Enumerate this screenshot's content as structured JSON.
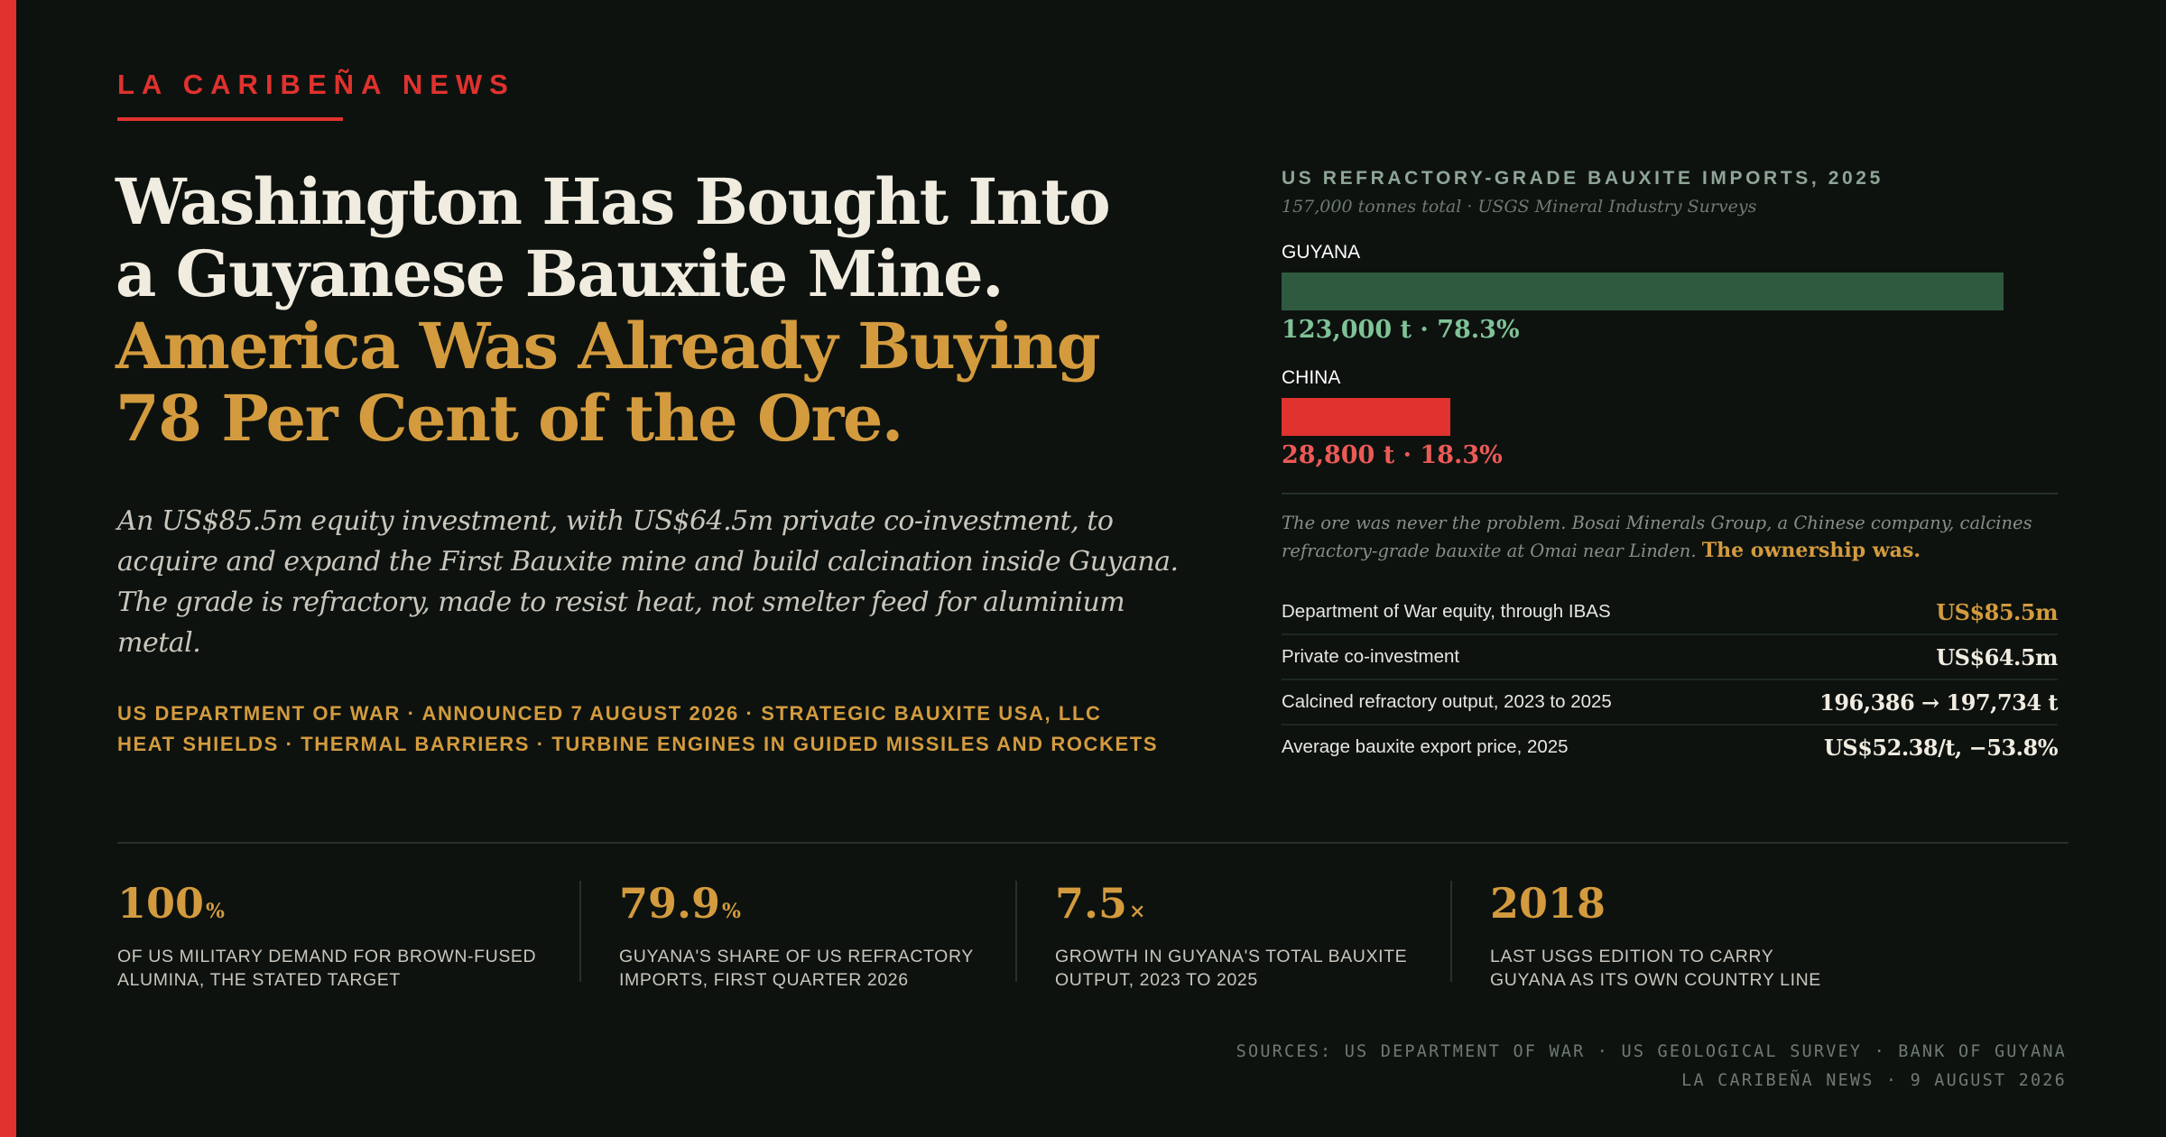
{
  "brand": {
    "name": "LA CARIBEÑA NEWS"
  },
  "headline": {
    "line1": "Washington Has Bought Into",
    "line2": "a Guyanese Bauxite Mine.",
    "line3": "America Was Already Buying",
    "line4": "78 Per Cent of the Ore."
  },
  "dek": "An US$85.5m equity investment, with US$64.5m private co-investment, to acquire and expand the First Bauxite mine and build calcination inside Guyana. The grade is refractory, made to resist heat, not smelter feed for aluminium metal.",
  "tags": {
    "line1": "US DEPARTMENT OF WAR · ANNOUNCED 7 AUGUST 2026 · STRATEGIC BAUXITE USA, LLC",
    "line2": "HEAT SHIELDS · THERMAL BARRIERS · TURBINE ENGINES IN GUIDED MISSILES AND ROCKETS"
  },
  "chart_data": {
    "type": "bar",
    "title": "US REFRACTORY-GRADE BAUXITE IMPORTS, 2025",
    "subtitle": "157,000 tonnes total · USGS Mineral Industry Surveys",
    "categories": [
      "GUYANA",
      "CHINA"
    ],
    "values": [
      123000,
      28800
    ],
    "shares_percent": [
      78.3,
      18.3
    ],
    "value_labels": [
      "123,000 t · 78.3%",
      "28,800 t · 18.3%"
    ],
    "colors": [
      "#2f5a40",
      "#e0322e"
    ],
    "label_colors": [
      "#7fc297",
      "#ec5a56"
    ],
    "total": 157000,
    "orientation": "horizontal"
  },
  "note": {
    "text": "The ore was never the problem. Bosai Minerals Group, a Chinese company, calcines refractory-grade bauxite at Omai near Linden. ",
    "emphasis": "The ownership was."
  },
  "facts": [
    {
      "label": "Department of War equity, through IBAS",
      "value": "US$85.5m",
      "highlight": true
    },
    {
      "label": "Private co-investment",
      "value": "US$64.5m",
      "highlight": false
    },
    {
      "label": "Calcined refractory output, 2023 to 2025",
      "value": "196,386 → 197,734 t",
      "highlight": false
    },
    {
      "label": "Average bauxite export price, 2025",
      "value": "US$52.38/t, −53.8%",
      "highlight": false
    }
  ],
  "stats": [
    {
      "number": "100",
      "unit": "%",
      "label_line1": "OF US MILITARY DEMAND FOR BROWN-FUSED",
      "label_line2": "ALUMINA, THE STATED TARGET"
    },
    {
      "number": "79.9",
      "unit": "%",
      "label_line1": "GUYANA'S SHARE OF US REFRACTORY",
      "label_line2": "IMPORTS, FIRST QUARTER 2026"
    },
    {
      "number": "7.5",
      "unit": "×",
      "label_line1": "GROWTH IN GUYANA'S TOTAL BAUXITE",
      "label_line2": "OUTPUT, 2023 TO 2025"
    },
    {
      "number": "2018",
      "unit": "",
      "label_line1": "LAST USGS EDITION TO CARRY",
      "label_line2": "GUYANA AS ITS OWN COUNTRY LINE"
    }
  ],
  "sources": {
    "line1": "SOURCES: US DEPARTMENT OF WAR · US GEOLOGICAL SURVEY · BANK OF GUYANA",
    "line2": "LA CARIBEÑA NEWS · 9 AUGUST 2026"
  }
}
